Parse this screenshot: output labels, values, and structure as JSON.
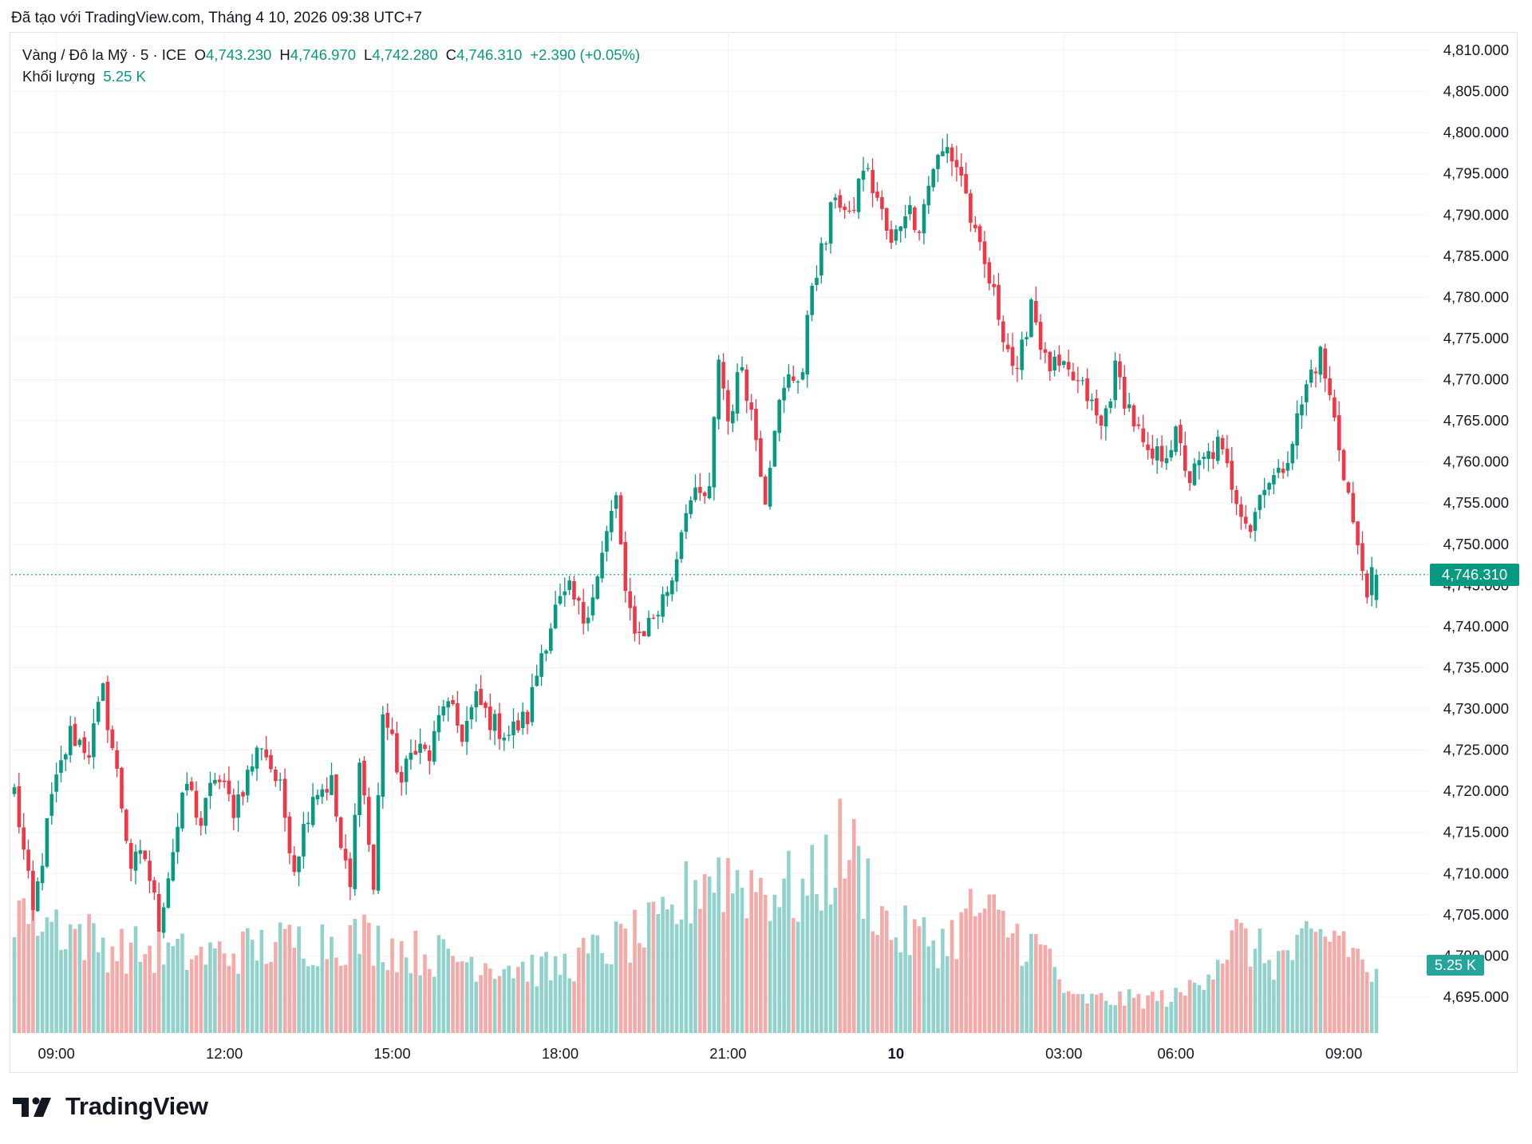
{
  "header": {
    "caption": "Đã tạo với TradingView.com, Tháng 4 10, 2026 09:38 UTC+7"
  },
  "legend": {
    "symbol": "Vàng / Đô la Mỹ · 5 · ICE",
    "open_label": "O",
    "open": "4,743.230",
    "high_label": "H",
    "high": "4,746.970",
    "low_label": "L",
    "low": "4,742.280",
    "close_label": "C",
    "close": "4,746.310",
    "change": "+2.390 (+0.05%)",
    "volume_label": "Khối lượng",
    "volume": "5.25 K"
  },
  "tags": {
    "last_price": "4,746.310",
    "last_volume": "5.25 K"
  },
  "colors": {
    "up": "#089981",
    "down": "#f23645",
    "up_volume": "#92d2cc",
    "down_volume": "#f7a9a7",
    "grid": "#f0f3fa",
    "axis_text": "#131722"
  },
  "brand": {
    "name": "TradingView"
  },
  "chart_data": {
    "type": "candlestick",
    "title": "Vàng / Đô la Mỹ · 5 · ICE",
    "ylim": [
      4693,
      4811
    ],
    "y_ticks": [
      {
        "value": 4810,
        "label": "4,810.000"
      },
      {
        "value": 4805,
        "label": "4,805.000"
      },
      {
        "value": 4800,
        "label": "4,800.000"
      },
      {
        "value": 4795,
        "label": "4,795.000"
      },
      {
        "value": 4790,
        "label": "4,790.000"
      },
      {
        "value": 4785,
        "label": "4,785.000"
      },
      {
        "value": 4780,
        "label": "4,780.000"
      },
      {
        "value": 4775,
        "label": "4,775.000"
      },
      {
        "value": 4770,
        "label": "4,770.000"
      },
      {
        "value": 4765,
        "label": "4,765.000"
      },
      {
        "value": 4760,
        "label": "4,760.000"
      },
      {
        "value": 4755,
        "label": "4,755.000"
      },
      {
        "value": 4750,
        "label": "4,750.000"
      },
      {
        "value": 4745,
        "label": "4,745.000"
      },
      {
        "value": 4740,
        "label": "4,740.000"
      },
      {
        "value": 4735,
        "label": "4,735.000"
      },
      {
        "value": 4730,
        "label": "4,730.000"
      },
      {
        "value": 4725,
        "label": "4,725.000"
      },
      {
        "value": 4720,
        "label": "4,720.000"
      },
      {
        "value": 4715,
        "label": "4,715.000"
      },
      {
        "value": 4710,
        "label": "4,710.000"
      },
      {
        "value": 4705,
        "label": "4,705.000"
      },
      {
        "value": 4700,
        "label": "4,700.000"
      },
      {
        "value": 4695,
        "label": "4,695.000"
      }
    ],
    "x_ticks": [
      {
        "index": 9,
        "label": "09:00",
        "bold": false
      },
      {
        "index": 45,
        "label": "12:00",
        "bold": false
      },
      {
        "index": 81,
        "label": "15:00",
        "bold": false
      },
      {
        "index": 117,
        "label": "18:00",
        "bold": false
      },
      {
        "index": 153,
        "label": "21:00",
        "bold": false
      },
      {
        "index": 189,
        "label": "10",
        "bold": true
      },
      {
        "index": 225,
        "label": "03:00",
        "bold": false
      },
      {
        "index": 249,
        "label": "06:00",
        "bold": false
      },
      {
        "index": 285,
        "label": "09:00",
        "bold": false
      }
    ],
    "last_price": 4746.31,
    "anchors": [
      [
        0,
        4720
      ],
      [
        4,
        4705
      ],
      [
        8,
        4719
      ],
      [
        12,
        4727
      ],
      [
        16,
        4725
      ],
      [
        19,
        4732
      ],
      [
        22,
        4722
      ],
      [
        25,
        4711
      ],
      [
        28,
        4712
      ],
      [
        31,
        4704
      ],
      [
        34,
        4713
      ],
      [
        37,
        4721
      ],
      [
        40,
        4716
      ],
      [
        43,
        4722
      ],
      [
        47,
        4718
      ],
      [
        50,
        4722
      ],
      [
        53,
        4726
      ],
      [
        57,
        4720
      ],
      [
        60,
        4711
      ],
      [
        64,
        4720
      ],
      [
        68,
        4721
      ],
      [
        70,
        4713
      ],
      [
        72,
        4708
      ],
      [
        74,
        4725
      ],
      [
        77,
        4708
      ],
      [
        79,
        4730
      ],
      [
        83,
        4721
      ],
      [
        86,
        4726
      ],
      [
        89,
        4724
      ],
      [
        92,
        4731
      ],
      [
        96,
        4727
      ],
      [
        99,
        4731
      ],
      [
        103,
        4728
      ],
      [
        106,
        4727
      ],
      [
        110,
        4729
      ],
      [
        113,
        4737
      ],
      [
        116,
        4742
      ],
      [
        119,
        4744
      ],
      [
        122,
        4741
      ],
      [
        125,
        4746
      ],
      [
        129,
        4756
      ],
      [
        131,
        4743
      ],
      [
        134,
        4739
      ],
      [
        138,
        4742
      ],
      [
        141,
        4746
      ],
      [
        144,
        4755
      ],
      [
        149,
        4756
      ],
      [
        151,
        4773
      ],
      [
        153,
        4765
      ],
      [
        156,
        4772
      ],
      [
        159,
        4763
      ],
      [
        161,
        4756
      ],
      [
        163,
        4765
      ],
      [
        166,
        4770
      ],
      [
        169,
        4771
      ],
      [
        171,
        4782
      ],
      [
        174,
        4787
      ],
      [
        176,
        4793
      ],
      [
        179,
        4789
      ],
      [
        182,
        4796
      ],
      [
        185,
        4792
      ],
      [
        188,
        4786
      ],
      [
        191,
        4791
      ],
      [
        194,
        4789
      ],
      [
        197,
        4796
      ],
      [
        200,
        4798
      ],
      [
        203,
        4795
      ],
      [
        206,
        4787
      ],
      [
        209,
        4782
      ],
      [
        212,
        4776
      ],
      [
        215,
        4770
      ],
      [
        218,
        4780
      ],
      [
        221,
        4772
      ],
      [
        224,
        4771
      ],
      [
        227,
        4770
      ],
      [
        230,
        4768
      ],
      [
        233,
        4764
      ],
      [
        236,
        4771
      ],
      [
        240,
        4765
      ],
      [
        243,
        4760
      ],
      [
        246,
        4761
      ],
      [
        249,
        4763
      ],
      [
        252,
        4758
      ],
      [
        255,
        4760
      ],
      [
        258,
        4762
      ],
      [
        262,
        4756
      ],
      [
        265,
        4752
      ],
      [
        268,
        4758
      ],
      [
        271,
        4758
      ],
      [
        274,
        4763
      ],
      [
        278,
        4771
      ],
      [
        280,
        4773
      ],
      [
        283,
        4765
      ],
      [
        286,
        4756
      ],
      [
        288,
        4749
      ],
      [
        290,
        4745
      ],
      [
        292,
        4746.3
      ]
    ],
    "volume_profile": [
      [
        0,
        0.55
      ],
      [
        20,
        0.36
      ],
      [
        40,
        0.32
      ],
      [
        60,
        0.38
      ],
      [
        75,
        0.4
      ],
      [
        85,
        0.34
      ],
      [
        100,
        0.3
      ],
      [
        115,
        0.26
      ],
      [
        125,
        0.34
      ],
      [
        140,
        0.45
      ],
      [
        148,
        0.68
      ],
      [
        160,
        0.62
      ],
      [
        170,
        0.58
      ],
      [
        178,
        0.8
      ],
      [
        188,
        0.42
      ],
      [
        200,
        0.38
      ],
      [
        206,
        0.52
      ],
      [
        214,
        0.42
      ],
      [
        222,
        0.32
      ],
      [
        226,
        0.14
      ],
      [
        238,
        0.14
      ],
      [
        250,
        0.15
      ],
      [
        262,
        0.4
      ],
      [
        270,
        0.3
      ],
      [
        284,
        0.42
      ],
      [
        292,
        0.22
      ]
    ],
    "candle_count": 293
  }
}
